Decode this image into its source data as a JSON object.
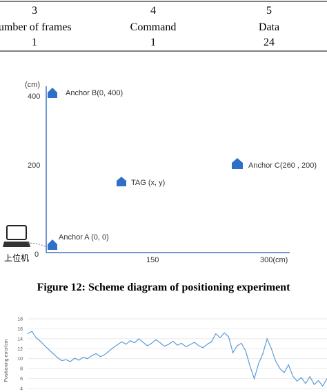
{
  "table": {
    "rows": [
      [
        "3",
        "4",
        "5"
      ],
      [
        "Number of frames",
        "Command",
        "Data"
      ],
      [
        "1",
        "1",
        "24"
      ]
    ]
  },
  "diagram": {
    "labels": {
      "unit_y": "(cm)",
      "y400": "400",
      "y200": "200",
      "origin": "0",
      "x150": "150",
      "x300": "300(cm)"
    },
    "nodes": [
      {
        "label": "Anchor B(0,  400)"
      },
      {
        "label": "Anchor C(260 ,  200)"
      },
      {
        "label": "TAG  (x,  y)"
      },
      {
        "label": "Anchor A  (0,  0)"
      },
      {
        "label": "上位机"
      }
    ]
  },
  "caption": "Figure 12: Scheme diagram of positioning experiment",
  "figure13": {
    "type": "line",
    "ylabel": "Positioning error/cm",
    "ylim": [
      4,
      18
    ],
    "yticks": [
      4,
      6,
      8,
      10,
      12,
      14,
      16,
      18
    ],
    "color": "#5b9bd5",
    "values": [
      15,
      15.5,
      14.2,
      13.5,
      12.6,
      11.8,
      11,
      10.2,
      9.6,
      9.8,
      9.4,
      10.1,
      9.7,
      10.3,
      10,
      10.6,
      11,
      10.4,
      10.8,
      11.5,
      12.2,
      12.8,
      13.4,
      12.9,
      13.6,
      13.2,
      14,
      13.3,
      12.6,
      13.1,
      13.8,
      13.2,
      12.5,
      12.9,
      13.5,
      12.7,
      13.1,
      12.4,
      12.8,
      13.3,
      12.6,
      12.2,
      12.9,
      13.4,
      15,
      14.2,
      15.2,
      14.4,
      11.2,
      12.6,
      13.1,
      11.5,
      8.5,
      6,
      9,
      11,
      14,
      12,
      9.5,
      8,
      7.2,
      8.8,
      6.5,
      5.5,
      6.2,
      5,
      6.4,
      4.8,
      5.6,
      4.5,
      6
    ]
  }
}
